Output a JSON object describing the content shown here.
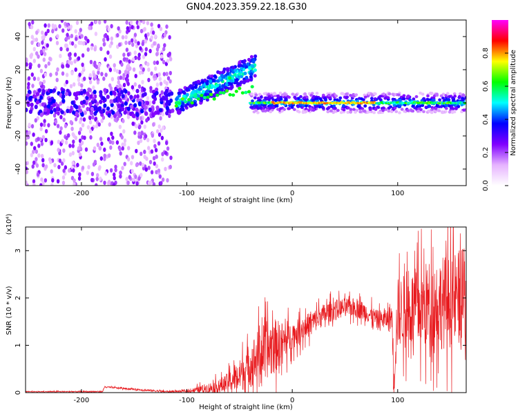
{
  "title": "GN04.2023.359.22.18.G30",
  "chart_data": [
    {
      "type": "heatmap",
      "xlabel": "Height of straight line (km)",
      "ylabel": "Frequency (Hz)",
      "xlim": [
        -253,
        165
      ],
      "ylim": [
        -50,
        50
      ],
      "xticks": [
        -200,
        -100,
        0,
        100
      ],
      "yticks": [
        -40,
        -20,
        0,
        20,
        40
      ],
      "grid": false,
      "colorbar": {
        "label": "Normalized spectral amplitude",
        "range": [
          0,
          1
        ],
        "ticks": [
          "0.0",
          "0.2",
          "0.4",
          "0.6",
          "0.8"
        ],
        "colormap": [
          "#ffffff",
          "#e6b3ff",
          "#8000ff",
          "#0000ff",
          "#00ffff",
          "#00ff00",
          "#ffff00",
          "#ff0000",
          "#ff00ff"
        ]
      },
      "features": {
        "noise_band_x": [
          -253,
          -115
        ],
        "rising_branch": {
          "x": [
            -110,
            -35
          ],
          "freq_start": 0,
          "freq_end": 22
        },
        "carrier_band": {
          "x": [
            -40,
            165
          ],
          "freq": 0,
          "peak_x": [
            -20,
            80
          ]
        }
      }
    },
    {
      "type": "line",
      "xlabel": "Height of straight line (km)",
      "ylabel": "SNR (10 * v/v)",
      "scale_label": "(x10⁴)",
      "xlim": [
        -253,
        165
      ],
      "ylim": [
        0,
        3.5
      ],
      "xticks": [
        -200,
        -100,
        0,
        100
      ],
      "yticks": [
        0,
        1,
        2,
        3
      ],
      "grid": false,
      "color": "#e8191d",
      "envelope_x": [
        -253,
        -180,
        -178,
        -120,
        -100,
        -70,
        -50,
        -40,
        -30,
        -20,
        -10,
        0,
        10,
        20,
        30,
        40,
        50,
        60,
        70,
        80,
        90,
        95,
        96,
        100,
        110,
        120,
        130,
        140,
        150,
        160,
        165
      ],
      "envelope_y": [
        0.02,
        0.02,
        0.12,
        0.02,
        0.03,
        0.12,
        0.35,
        0.6,
        0.85,
        0.95,
        1.05,
        1.2,
        1.35,
        1.5,
        1.65,
        1.75,
        1.8,
        1.8,
        1.7,
        1.55,
        1.55,
        1.6,
        0.3,
        1.7,
        1.75,
        1.8,
        1.85,
        1.9,
        1.95,
        2.0,
        2.0
      ],
      "spread_x": [
        -253,
        -100,
        -60,
        -40,
        -20,
        0,
        50,
        90,
        100,
        130,
        165
      ],
      "spread_y": [
        0.01,
        0.03,
        0.25,
        0.6,
        0.8,
        0.35,
        0.25,
        0.25,
        0.9,
        1.2,
        1.3
      ]
    }
  ]
}
